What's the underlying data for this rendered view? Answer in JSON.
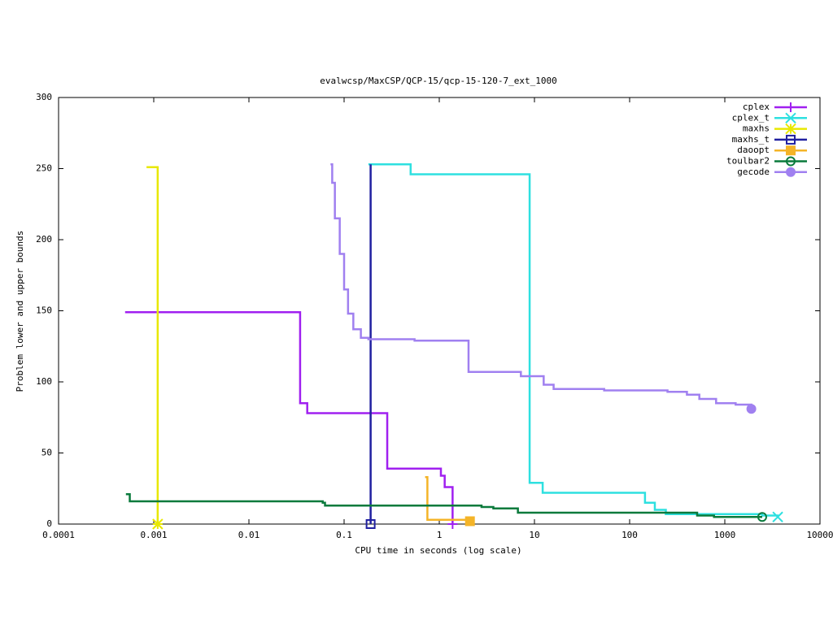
{
  "chart_data": {
    "type": "line",
    "step": true,
    "title": "evalwcsp/MaxCSP/QCP-15/qcp-15-120-7_ext_1000",
    "xlabel": "CPU time in seconds (log scale)",
    "ylabel": "Problem lower and upper bounds",
    "xlog": true,
    "xlim": [
      0.0001,
      10000
    ],
    "xticks": [
      0.0001,
      0.001,
      0.01,
      0.1,
      1,
      10,
      100,
      1000,
      10000
    ],
    "ylim": [
      0,
      300
    ],
    "yticks": [
      0,
      50,
      100,
      150,
      200,
      250,
      300
    ],
    "legend": "top-right",
    "series": [
      {
        "name": "cplex",
        "color": "#a020f0",
        "marker": "plus",
        "x": [
          0.0005,
          0.0345,
          0.041,
          0.284,
          1.04,
          1.14,
          1.38
        ],
        "values": [
          149,
          85,
          78,
          39,
          34,
          26,
          0
        ]
      },
      {
        "name": "cplex_t",
        "color": "#2ee0e0",
        "marker": "cross",
        "x": [
          0.18,
          0.5,
          8.9,
          12.2,
          145,
          184,
          240,
          2470,
          3600
        ],
        "values": [
          253,
          246,
          29,
          22,
          15,
          10,
          7,
          6,
          5
        ]
      },
      {
        "name": "maxhs",
        "color": "#e8e800",
        "marker": "star",
        "x": [
          0.00084,
          0.0011
        ],
        "values": [
          251,
          0
        ]
      },
      {
        "name": "maxhs_t",
        "color": "#2020a0",
        "marker": "square",
        "x": [
          0.19,
          0.19
        ],
        "values": [
          253,
          0
        ]
      },
      {
        "name": "daoopt",
        "color": "#f4b428",
        "marker": "filled-square",
        "x": [
          0.71,
          0.75,
          2.1
        ],
        "values": [
          33,
          3,
          2
        ]
      },
      {
        "name": "toulbar2",
        "color": "#0a7a3c",
        "marker": "circle",
        "x": [
          0.00051,
          0.00056,
          0.0596,
          0.063,
          2.78,
          3.7,
          6.7,
          512,
          770,
          2470
        ],
        "values": [
          21,
          16,
          15,
          13,
          12,
          11,
          8,
          6,
          5,
          5
        ]
      },
      {
        "name": "gecode",
        "color": "#a080f0",
        "marker": "filled-circle",
        "x": [
          0.072,
          0.075,
          0.08,
          0.09,
          0.1,
          0.11,
          0.125,
          0.15,
          0.18,
          0.55,
          2.03,
          7.2,
          12.5,
          15.9,
          54,
          250,
          400,
          540,
          810,
          1300,
          1900
        ],
        "values": [
          253,
          240,
          215,
          190,
          165,
          148,
          137,
          131,
          130,
          129,
          107,
          104,
          98,
          95,
          94,
          93,
          91,
          88,
          85,
          84,
          81
        ]
      }
    ]
  }
}
